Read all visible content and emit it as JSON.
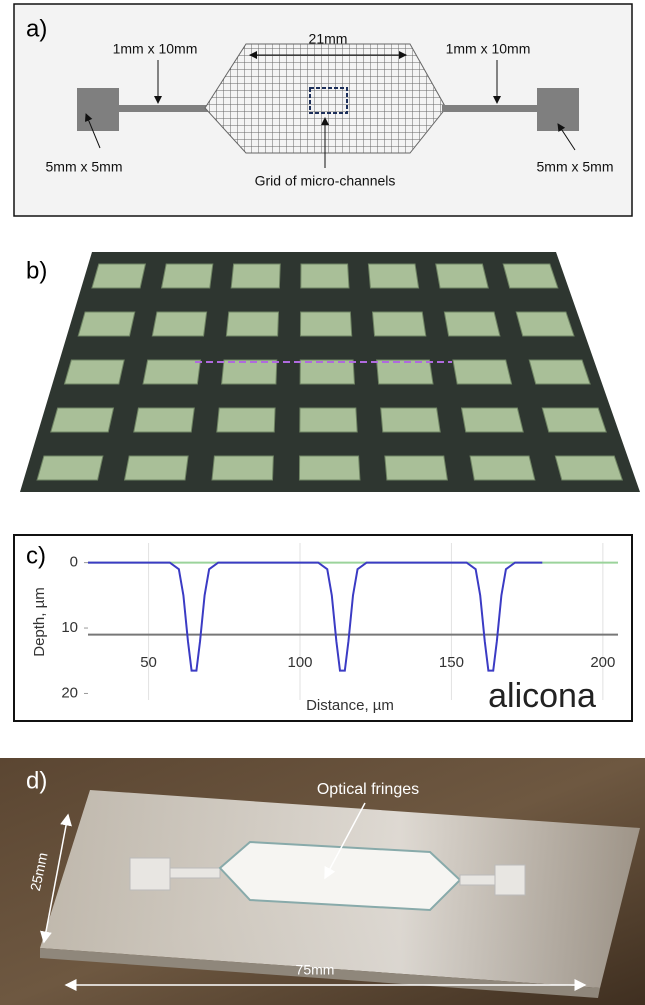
{
  "panel_labels": [
    "a)",
    "b)",
    "c)",
    "d)"
  ],
  "diagram": {
    "span_label": "21mm",
    "channel_labels": [
      "1mm x 10mm",
      "1mm x 10mm"
    ],
    "pad_labels": [
      "5mm x 5mm",
      "5mm x 5mm"
    ],
    "grid_label": "Grid of micro-channels"
  },
  "chart_data": {
    "type": "line",
    "x_label": "Distance, µm",
    "y_label": "Depth, µm",
    "logo": "alicona",
    "x": [
      30,
      45,
      57,
      60,
      61.5,
      63,
      64.2,
      65.8,
      67,
      68.5,
      70,
      73,
      90,
      106,
      109,
      110.5,
      112,
      113.2,
      114.8,
      116,
      117.5,
      119,
      122,
      140,
      155,
      158,
      159.5,
      161,
      162.2,
      163.8,
      165,
      166.5,
      168,
      171,
      180
    ],
    "values": [
      0,
      0,
      0,
      1,
      5,
      12,
      16.5,
      16.5,
      12,
      5,
      1,
      0,
      0,
      0,
      1,
      5,
      12,
      16.5,
      16.5,
      12,
      5,
      1,
      0,
      0,
      0,
      1,
      5,
      12,
      16.5,
      16.5,
      12,
      5,
      1,
      0,
      0
    ],
    "color": "#3b3bc4",
    "xlim": [
      30,
      205
    ],
    "ylim": [
      -3,
      21
    ],
    "y_inverted": true,
    "xticks": [
      50,
      100,
      150,
      200
    ],
    "yticks": [
      0,
      10,
      20
    ],
    "reference_lines": [
      {
        "value": 0,
        "color": "#9bd39b"
      },
      {
        "value": 11,
        "color": "#777777"
      }
    ],
    "grid": true
  },
  "photo": {
    "annotation": "Optical fringes",
    "width_label": "75mm",
    "height_label": "25mm"
  }
}
